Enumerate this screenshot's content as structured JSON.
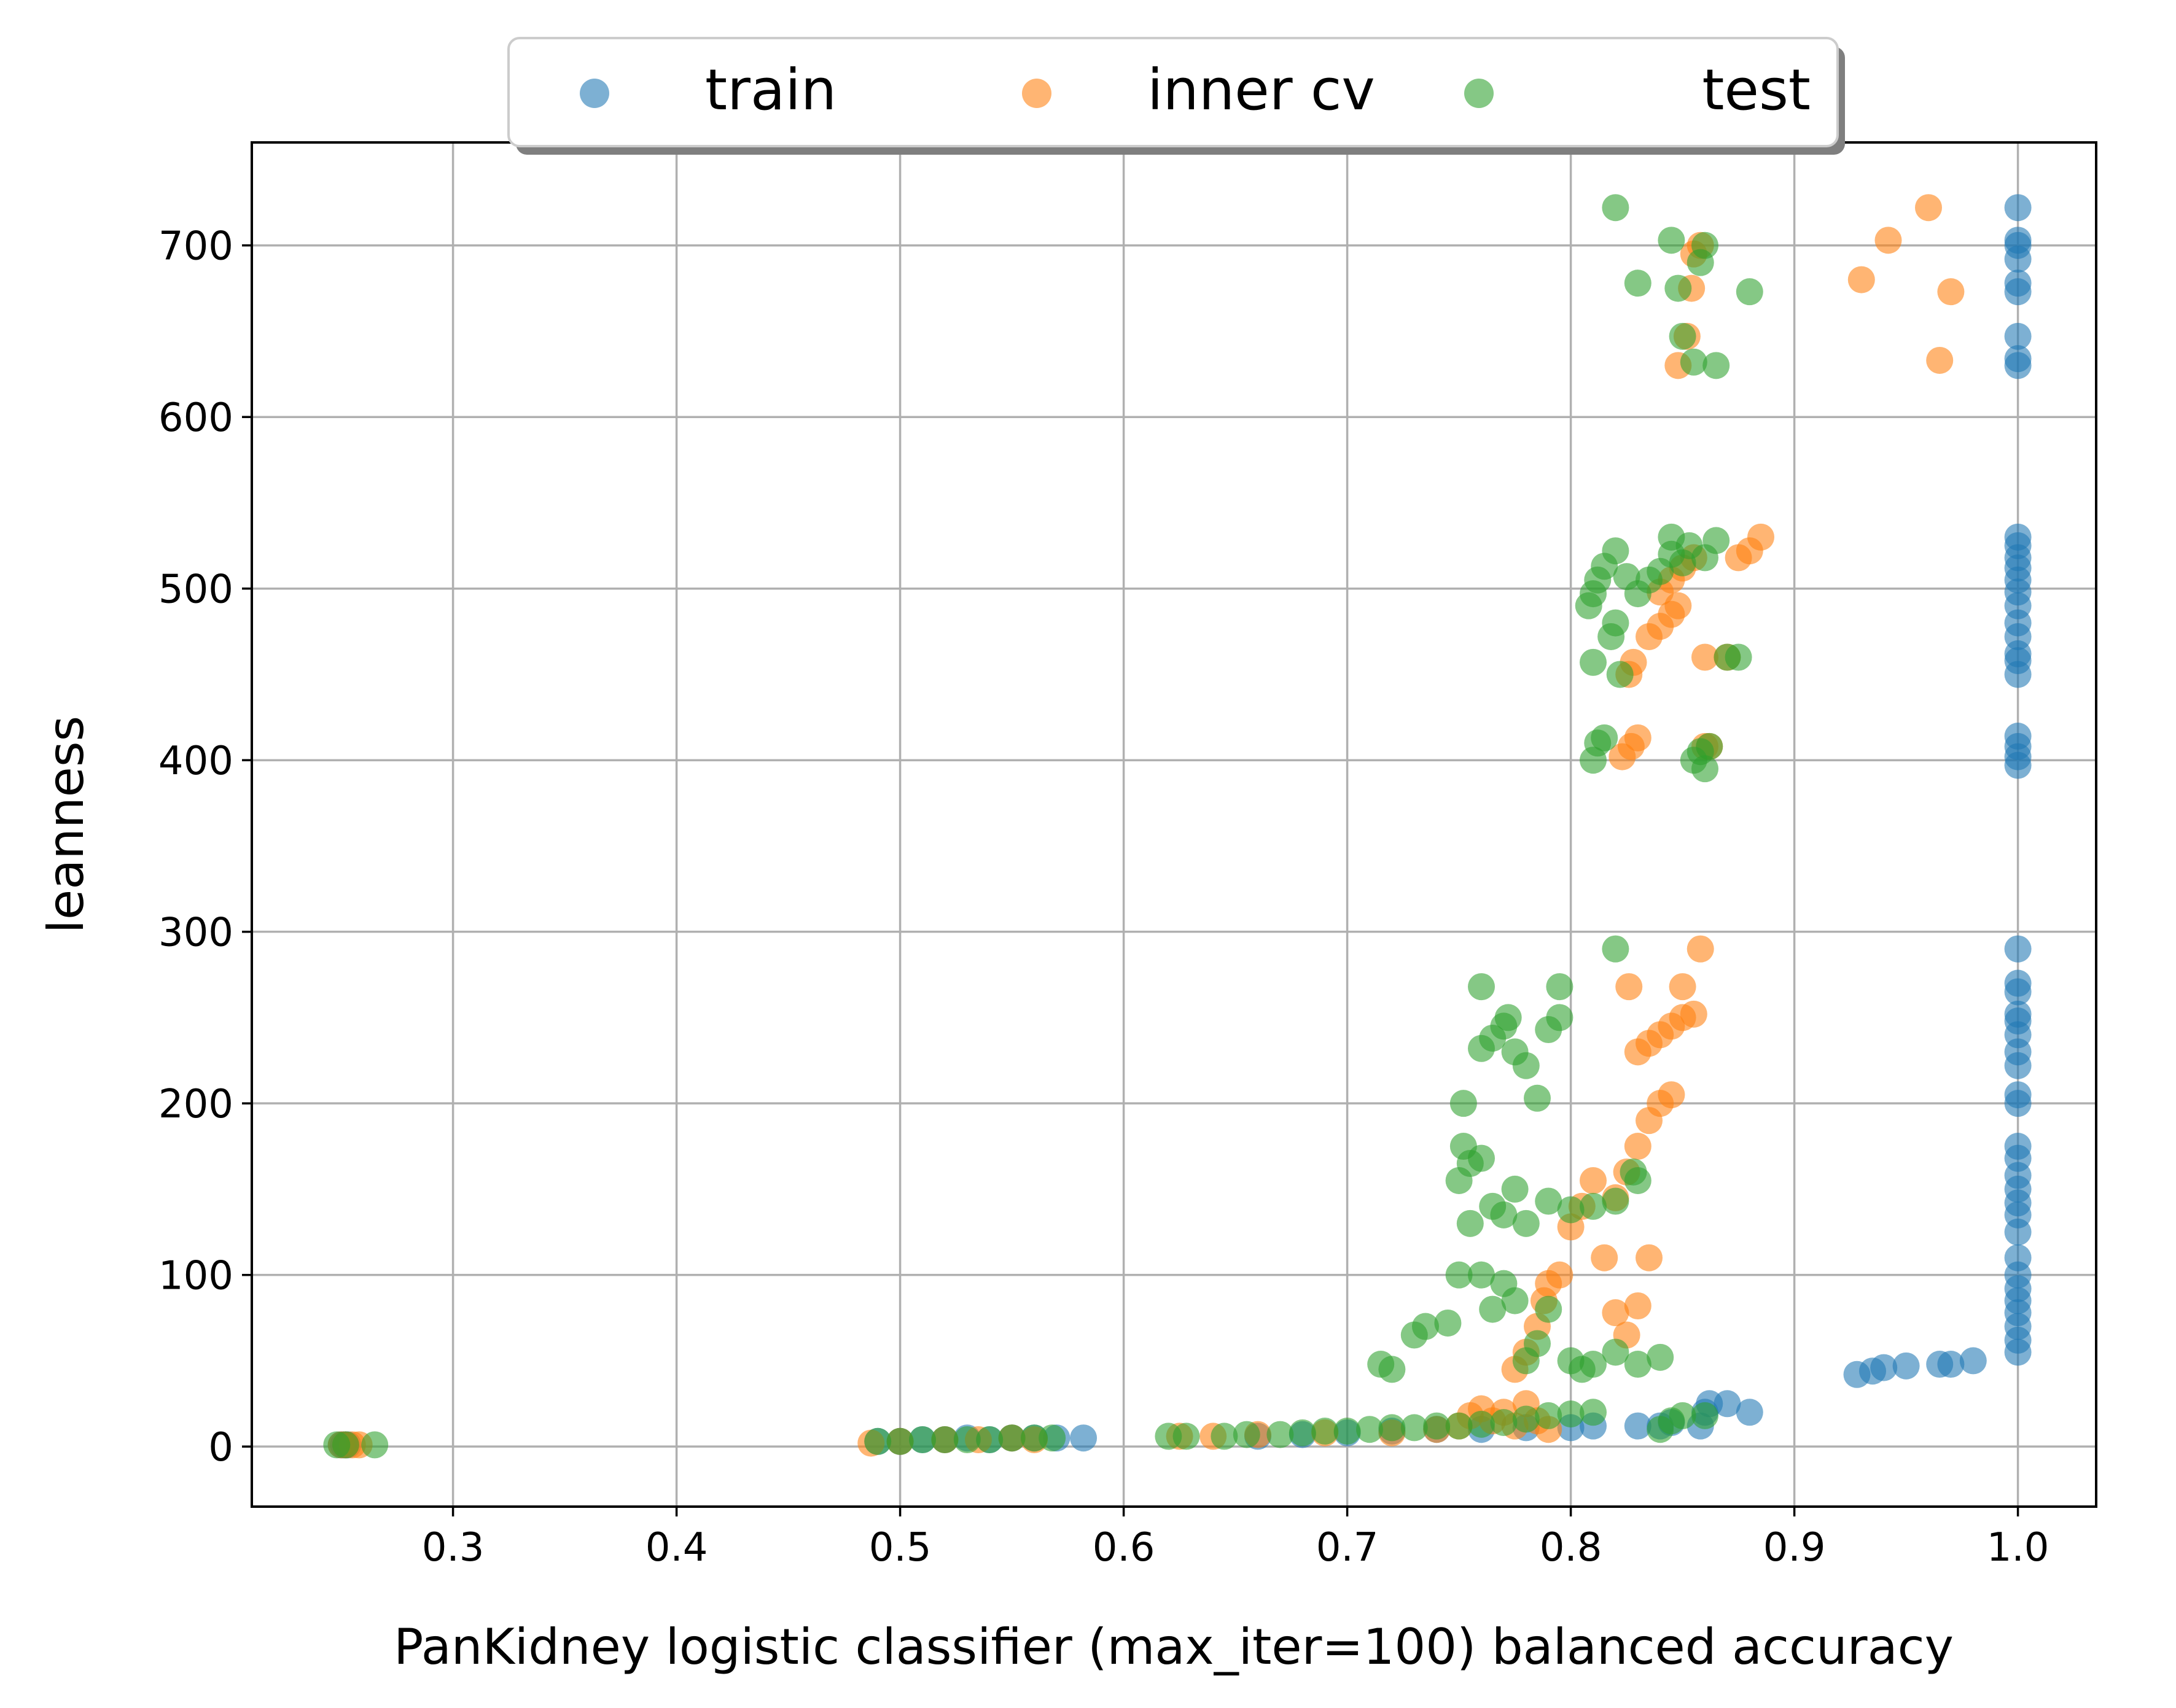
{
  "chart_data": {
    "type": "scatter",
    "title": "",
    "xlabel": "PanKidney logistic classifier (max_iter=100) balanced accuracy",
    "ylabel": "leanness",
    "xlim": [
      0.21,
      1.035
    ],
    "ylim": [
      -35,
      760
    ],
    "xticks": [
      0.3,
      0.4,
      0.5,
      0.6,
      0.7,
      0.8,
      0.9,
      1.0
    ],
    "xtick_labels": [
      "0.3",
      "0.4",
      "0.5",
      "0.6",
      "0.7",
      "0.8",
      "0.9",
      "1.0"
    ],
    "yticks": [
      0,
      100,
      200,
      300,
      400,
      500,
      600,
      700
    ],
    "ytick_labels": [
      "0",
      "100",
      "200",
      "300",
      "400",
      "500",
      "600",
      "700"
    ],
    "grid": true,
    "legend": {
      "placement": "top-center",
      "columns": 3
    },
    "series": [
      {
        "name": "train",
        "color": "#1f77b4",
        "points": [
          [
            0.25,
            1
          ],
          [
            0.251,
            1
          ],
          [
            0.252,
            1
          ],
          [
            0.253,
            1
          ],
          [
            0.49,
            3
          ],
          [
            0.5,
            3
          ],
          [
            0.51,
            4
          ],
          [
            0.52,
            4
          ],
          [
            0.53,
            5
          ],
          [
            0.54,
            4
          ],
          [
            0.55,
            5
          ],
          [
            0.56,
            5
          ],
          [
            0.57,
            5
          ],
          [
            0.582,
            5
          ],
          [
            0.66,
            6
          ],
          [
            0.68,
            7
          ],
          [
            0.7,
            8
          ],
          [
            0.72,
            9
          ],
          [
            0.74,
            10
          ],
          [
            0.76,
            10
          ],
          [
            0.78,
            11
          ],
          [
            0.8,
            11
          ],
          [
            0.81,
            12
          ],
          [
            0.83,
            12
          ],
          [
            0.845,
            14
          ],
          [
            0.86,
            20
          ],
          [
            0.862,
            25
          ],
          [
            0.87,
            25
          ],
          [
            0.88,
            20
          ],
          [
            0.858,
            12
          ],
          [
            0.84,
            12
          ],
          [
            0.928,
            42
          ],
          [
            0.935,
            44
          ],
          [
            0.94,
            46
          ],
          [
            0.95,
            47
          ],
          [
            0.965,
            48
          ],
          [
            0.97,
            48
          ],
          [
            0.98,
            50
          ],
          [
            1.0,
            55
          ],
          [
            1.0,
            62
          ],
          [
            1.0,
            70
          ],
          [
            1.0,
            78
          ],
          [
            1.0,
            85
          ],
          [
            1.0,
            92
          ],
          [
            1.0,
            100
          ],
          [
            1.0,
            110
          ],
          [
            1.0,
            125
          ],
          [
            1.0,
            135
          ],
          [
            1.0,
            142
          ],
          [
            1.0,
            150
          ],
          [
            1.0,
            158
          ],
          [
            1.0,
            168
          ],
          [
            1.0,
            175
          ],
          [
            1.0,
            200
          ],
          [
            1.0,
            205
          ],
          [
            1.0,
            222
          ],
          [
            1.0,
            230
          ],
          [
            1.0,
            240
          ],
          [
            1.0,
            248
          ],
          [
            1.0,
            252
          ],
          [
            1.0,
            265
          ],
          [
            1.0,
            270
          ],
          [
            1.0,
            290
          ],
          [
            1.0,
            397
          ],
          [
            1.0,
            402
          ],
          [
            1.0,
            408
          ],
          [
            1.0,
            414
          ],
          [
            1.0,
            450
          ],
          [
            1.0,
            458
          ],
          [
            1.0,
            462
          ],
          [
            1.0,
            472
          ],
          [
            1.0,
            480
          ],
          [
            1.0,
            490
          ],
          [
            1.0,
            498
          ],
          [
            1.0,
            505
          ],
          [
            1.0,
            512
          ],
          [
            1.0,
            518
          ],
          [
            1.0,
            525
          ],
          [
            1.0,
            530
          ],
          [
            1.0,
            630
          ],
          [
            1.0,
            634
          ],
          [
            1.0,
            647
          ],
          [
            1.0,
            673
          ],
          [
            1.0,
            678
          ],
          [
            1.0,
            692
          ],
          [
            1.0,
            700
          ],
          [
            1.0,
            703
          ],
          [
            1.0,
            722
          ]
        ]
      },
      {
        "name": "inner cv",
        "color": "#ff7f0e",
        "points": [
          [
            0.25,
            1
          ],
          [
            0.252,
            1
          ],
          [
            0.255,
            1
          ],
          [
            0.258,
            1
          ],
          [
            0.487,
            2
          ],
          [
            0.5,
            3
          ],
          [
            0.52,
            4
          ],
          [
            0.535,
            4
          ],
          [
            0.55,
            5
          ],
          [
            0.56,
            4
          ],
          [
            0.625,
            6
          ],
          [
            0.64,
            6
          ],
          [
            0.66,
            7
          ],
          [
            0.69,
            8
          ],
          [
            0.72,
            8
          ],
          [
            0.74,
            10
          ],
          [
            0.75,
            12
          ],
          [
            0.755,
            18
          ],
          [
            0.76,
            22
          ],
          [
            0.765,
            15
          ],
          [
            0.77,
            20
          ],
          [
            0.775,
            12
          ],
          [
            0.78,
            25
          ],
          [
            0.785,
            15
          ],
          [
            0.79,
            10
          ],
          [
            0.775,
            45
          ],
          [
            0.78,
            55
          ],
          [
            0.785,
            70
          ],
          [
            0.788,
            85
          ],
          [
            0.79,
            95
          ],
          [
            0.795,
            100
          ],
          [
            0.8,
            128
          ],
          [
            0.805,
            140
          ],
          [
            0.81,
            155
          ],
          [
            0.815,
            110
          ],
          [
            0.82,
            78
          ],
          [
            0.825,
            65
          ],
          [
            0.83,
            82
          ],
          [
            0.835,
            110
          ],
          [
            0.82,
            145
          ],
          [
            0.825,
            160
          ],
          [
            0.83,
            175
          ],
          [
            0.835,
            190
          ],
          [
            0.84,
            200
          ],
          [
            0.845,
            205
          ],
          [
            0.83,
            230
          ],
          [
            0.835,
            235
          ],
          [
            0.84,
            240
          ],
          [
            0.845,
            245
          ],
          [
            0.85,
            250
          ],
          [
            0.855,
            252
          ],
          [
            0.826,
            268
          ],
          [
            0.85,
            268
          ],
          [
            0.858,
            290
          ],
          [
            0.823,
            402
          ],
          [
            0.827,
            408
          ],
          [
            0.83,
            413
          ],
          [
            0.86,
            408
          ],
          [
            0.862,
            408
          ],
          [
            0.826,
            450
          ],
          [
            0.828,
            457
          ],
          [
            0.835,
            472
          ],
          [
            0.84,
            478
          ],
          [
            0.845,
            485
          ],
          [
            0.848,
            490
          ],
          [
            0.84,
            498
          ],
          [
            0.845,
            505
          ],
          [
            0.85,
            512
          ],
          [
            0.855,
            518
          ],
          [
            0.86,
            460
          ],
          [
            0.87,
            460
          ],
          [
            0.875,
            518
          ],
          [
            0.88,
            522
          ],
          [
            0.885,
            530
          ],
          [
            0.848,
            630
          ],
          [
            0.852,
            647
          ],
          [
            0.854,
            675
          ],
          [
            0.855,
            695
          ],
          [
            0.858,
            700
          ],
          [
            0.93,
            680
          ],
          [
            0.942,
            703
          ],
          [
            0.96,
            722
          ],
          [
            0.965,
            633
          ],
          [
            0.97,
            673
          ]
        ]
      },
      {
        "name": "test",
        "color": "#2ca02c",
        "points": [
          [
            0.248,
            1
          ],
          [
            0.252,
            1
          ],
          [
            0.265,
            1
          ],
          [
            0.49,
            3
          ],
          [
            0.5,
            3
          ],
          [
            0.51,
            4
          ],
          [
            0.52,
            4
          ],
          [
            0.53,
            4
          ],
          [
            0.54,
            4
          ],
          [
            0.55,
            5
          ],
          [
            0.56,
            5
          ],
          [
            0.568,
            5
          ],
          [
            0.62,
            6
          ],
          [
            0.628,
            6
          ],
          [
            0.645,
            6
          ],
          [
            0.655,
            7
          ],
          [
            0.67,
            7
          ],
          [
            0.68,
            8
          ],
          [
            0.69,
            9
          ],
          [
            0.7,
            9
          ],
          [
            0.71,
            10
          ],
          [
            0.72,
            11
          ],
          [
            0.73,
            11
          ],
          [
            0.74,
            12
          ],
          [
            0.75,
            12
          ],
          [
            0.76,
            13
          ],
          [
            0.77,
            14
          ],
          [
            0.78,
            16
          ],
          [
            0.79,
            18
          ],
          [
            0.8,
            19
          ],
          [
            0.81,
            20
          ],
          [
            0.84,
            10
          ],
          [
            0.845,
            15
          ],
          [
            0.85,
            18
          ],
          [
            0.86,
            18
          ],
          [
            0.715,
            48
          ],
          [
            0.72,
            45
          ],
          [
            0.73,
            65
          ],
          [
            0.735,
            70
          ],
          [
            0.745,
            72
          ],
          [
            0.75,
            100
          ],
          [
            0.755,
            130
          ],
          [
            0.76,
            100
          ],
          [
            0.765,
            80
          ],
          [
            0.77,
            95
          ],
          [
            0.775,
            85
          ],
          [
            0.78,
            50
          ],
          [
            0.785,
            60
          ],
          [
            0.79,
            80
          ],
          [
            0.8,
            50
          ],
          [
            0.805,
            45
          ],
          [
            0.81,
            48
          ],
          [
            0.82,
            55
          ],
          [
            0.83,
            48
          ],
          [
            0.84,
            52
          ],
          [
            0.75,
            155
          ],
          [
            0.752,
            175
          ],
          [
            0.755,
            165
          ],
          [
            0.76,
            168
          ],
          [
            0.765,
            140
          ],
          [
            0.77,
            135
          ],
          [
            0.775,
            150
          ],
          [
            0.78,
            130
          ],
          [
            0.79,
            143
          ],
          [
            0.8,
            138
          ],
          [
            0.81,
            140
          ],
          [
            0.82,
            143
          ],
          [
            0.828,
            160
          ],
          [
            0.83,
            155
          ],
          [
            0.752,
            200
          ],
          [
            0.76,
            232
          ],
          [
            0.765,
            238
          ],
          [
            0.77,
            245
          ],
          [
            0.772,
            250
          ],
          [
            0.775,
            230
          ],
          [
            0.78,
            222
          ],
          [
            0.785,
            203
          ],
          [
            0.79,
            243
          ],
          [
            0.795,
            250
          ],
          [
            0.76,
            268
          ],
          [
            0.795,
            268
          ],
          [
            0.82,
            290
          ],
          [
            0.81,
            400
          ],
          [
            0.812,
            410
          ],
          [
            0.815,
            413
          ],
          [
            0.855,
            400
          ],
          [
            0.858,
            405
          ],
          [
            0.86,
            395
          ],
          [
            0.862,
            408
          ],
          [
            0.808,
            490
          ],
          [
            0.81,
            497
          ],
          [
            0.812,
            505
          ],
          [
            0.815,
            513
          ],
          [
            0.818,
            472
          ],
          [
            0.82,
            480
          ],
          [
            0.822,
            450
          ],
          [
            0.81,
            457
          ],
          [
            0.825,
            507
          ],
          [
            0.83,
            497
          ],
          [
            0.835,
            505
          ],
          [
            0.84,
            510
          ],
          [
            0.845,
            520
          ],
          [
            0.85,
            515
          ],
          [
            0.853,
            525
          ],
          [
            0.86,
            518
          ],
          [
            0.865,
            528
          ],
          [
            0.87,
            460
          ],
          [
            0.875,
            460
          ],
          [
            0.82,
            522
          ],
          [
            0.845,
            530
          ],
          [
            0.82,
            722
          ],
          [
            0.83,
            678
          ],
          [
            0.845,
            703
          ],
          [
            0.848,
            675
          ],
          [
            0.85,
            647
          ],
          [
            0.855,
            632
          ],
          [
            0.858,
            690
          ],
          [
            0.86,
            700
          ],
          [
            0.865,
            630
          ],
          [
            0.88,
            673
          ]
        ]
      }
    ]
  }
}
